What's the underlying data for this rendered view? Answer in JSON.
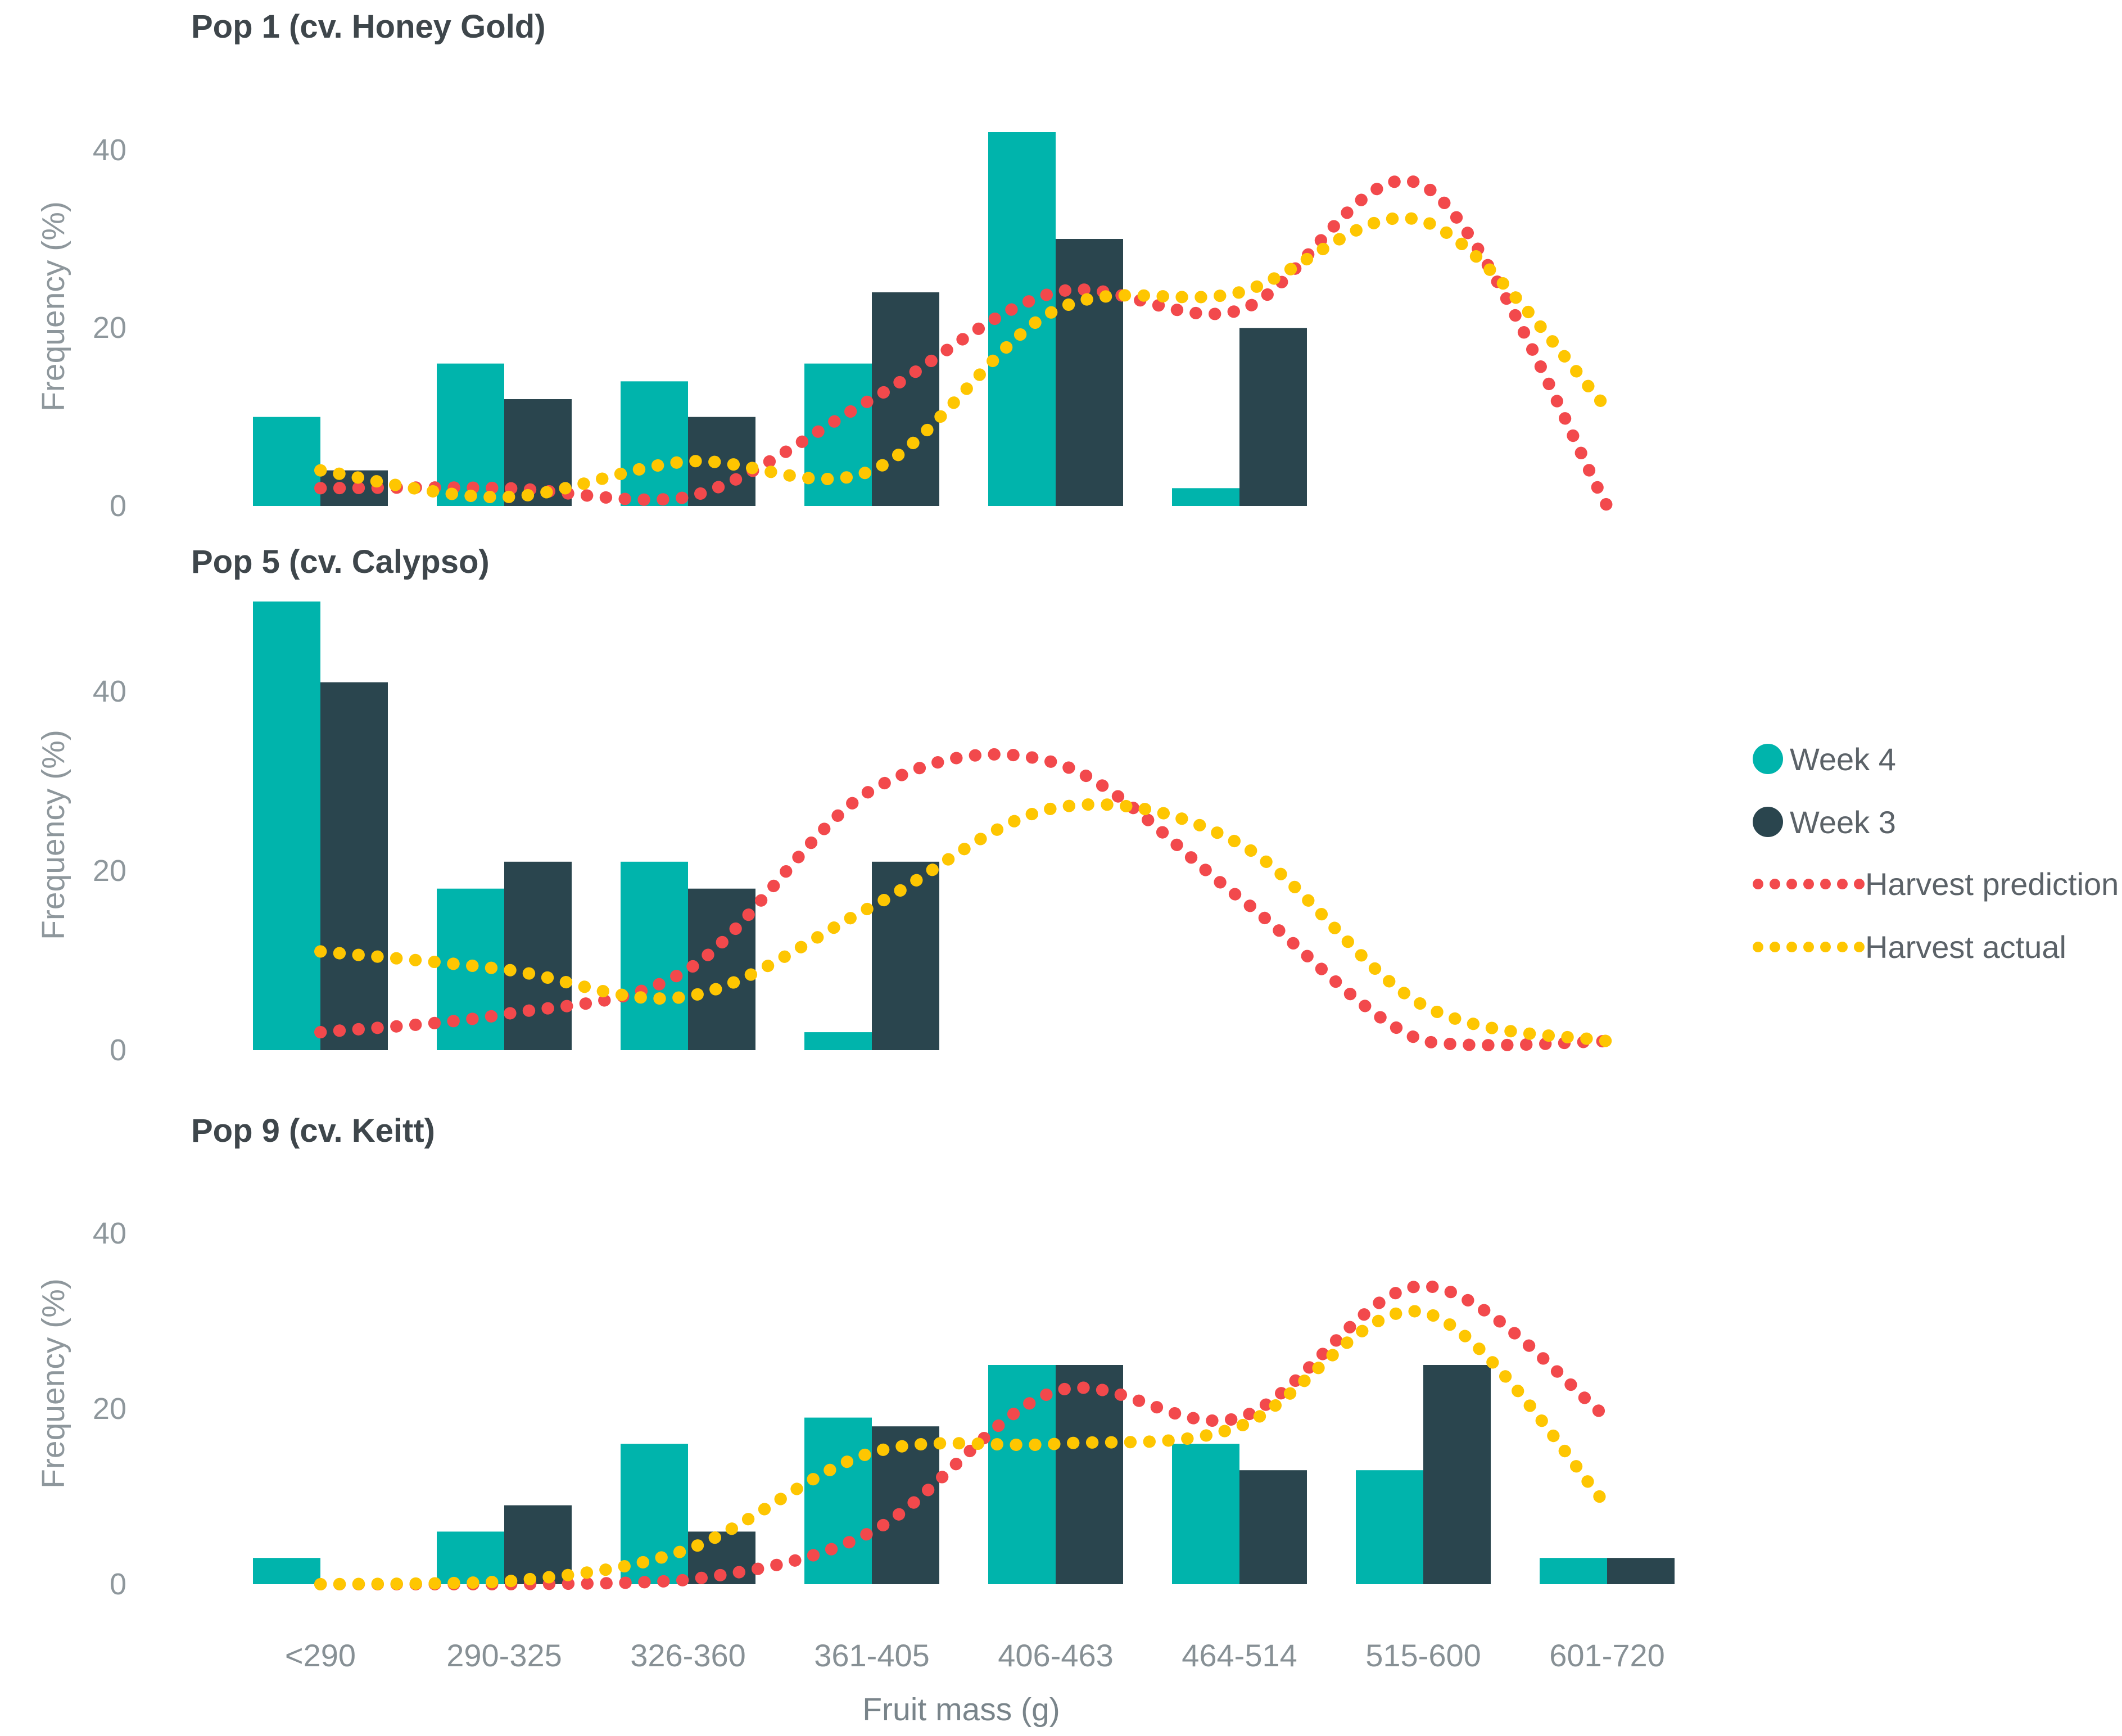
{
  "figure": {
    "background": "#ffffff"
  },
  "colors": {
    "week4": "#00B4AC",
    "week3": "#2A454E",
    "prediction": "#F2494C",
    "actual": "#FEC601",
    "title_text": "#3e464b",
    "axis_text": "#8e979c",
    "legend_text": "#5b6268"
  },
  "y_axis": {
    "label": "Frequency (%)",
    "tick_labels": [
      "40",
      "20",
      "0"
    ],
    "tick_values": [
      40,
      20,
      0
    ]
  },
  "x_axis": {
    "title": "Fruit mass (g)",
    "categories": [
      "<290",
      "290-325",
      "326-360",
      "361-405",
      "406-463",
      "464-514",
      "515-600",
      "601-720"
    ]
  },
  "legend": {
    "items": [
      {
        "label": "Week 4",
        "marker": "circle",
        "color": "week4"
      },
      {
        "label": "Week 3",
        "marker": "circle",
        "color": "week3"
      },
      {
        "label": "Harvest prediction",
        "marker": "dotted-line",
        "color": "prediction"
      },
      {
        "label": "Harvest actual",
        "marker": "dotted-line",
        "color": "actual"
      }
    ]
  },
  "chart_data": [
    {
      "type": "bar",
      "title": "Pop 1 (cv. Honey Gold)",
      "xlabel": "Fruit mass (g)",
      "ylabel": "Frequency (%)",
      "ylim": [
        0,
        48
      ],
      "grid": false,
      "categories": [
        "<290",
        "290-325",
        "326-360",
        "361-405",
        "406-463",
        "464-514",
        "515-600",
        "601-720"
      ],
      "series": [
        {
          "name": "Week 4",
          "type": "bar",
          "color": "week4",
          "values": [
            10,
            16,
            14,
            16,
            42,
            2,
            0,
            0
          ]
        },
        {
          "name": "Week 3",
          "type": "bar",
          "color": "week3",
          "values": [
            4,
            12,
            10,
            24,
            30,
            20,
            0,
            0
          ]
        },
        {
          "name": "Harvest prediction",
          "type": "dotted-line",
          "color": "prediction",
          "values": [
            2,
            2,
            1,
            12,
            24,
            22,
            36,
            0
          ]
        },
        {
          "name": "Harvest actual",
          "type": "dotted-line",
          "color": "actual",
          "values": [
            4,
            1,
            5,
            4,
            22,
            24,
            32,
            11
          ]
        }
      ]
    },
    {
      "type": "bar",
      "title": "Pop 5 (cv. Calypso)",
      "xlabel": "Fruit mass (g)",
      "ylabel": "Frequency (%)",
      "ylim": [
        0,
        52
      ],
      "grid": false,
      "categories": [
        "<290",
        "290-325",
        "326-360",
        "361-405",
        "406-463",
        "464-514",
        "515-600",
        "601-720"
      ],
      "series": [
        {
          "name": "Week 4",
          "type": "bar",
          "color": "week4",
          "values": [
            50,
            18,
            21,
            2,
            0,
            0,
            0,
            0
          ]
        },
        {
          "name": "Week 3",
          "type": "bar",
          "color": "week3",
          "values": [
            41,
            21,
            18,
            21,
            0,
            0,
            0,
            0
          ]
        },
        {
          "name": "Harvest prediction",
          "type": "dotted-line",
          "color": "prediction",
          "values": [
            2,
            4,
            9,
            29,
            32,
            17,
            1,
            1
          ]
        },
        {
          "name": "Harvest actual",
          "type": "dotted-line",
          "color": "actual",
          "values": [
            11,
            9,
            6,
            16,
            27,
            23,
            5,
            1
          ]
        }
      ]
    },
    {
      "type": "bar",
      "title": "Pop 9 (cv. Keitt)",
      "xlabel": "Fruit mass (g)",
      "ylabel": "Frequency (%)",
      "ylim": [
        0,
        50
      ],
      "grid": false,
      "categories": [
        "<290",
        "290-325",
        "326-360",
        "361-405",
        "406-463",
        "464-514",
        "515-600",
        "601-720"
      ],
      "series": [
        {
          "name": "Week 4",
          "type": "bar",
          "color": "week4",
          "values": [
            3,
            6,
            16,
            19,
            25,
            16,
            13,
            3
          ]
        },
        {
          "name": "Week 3",
          "type": "bar",
          "color": "week3",
          "values": [
            0,
            9,
            6,
            18,
            25,
            13,
            25,
            3
          ]
        },
        {
          "name": "Harvest prediction",
          "type": "dotted-line",
          "color": "prediction",
          "values": [
            0,
            0,
            0.5,
            6,
            22,
            19,
            34,
            19
          ]
        },
        {
          "name": "Harvest actual",
          "type": "dotted-line",
          "color": "actual",
          "values": [
            0,
            0.3,
            4,
            15,
            16,
            18,
            31,
            9
          ]
        }
      ]
    }
  ]
}
